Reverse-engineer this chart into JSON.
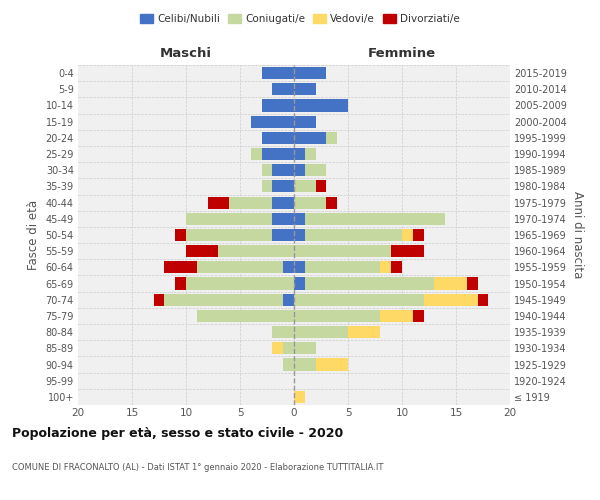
{
  "age_groups": [
    "100+",
    "95-99",
    "90-94",
    "85-89",
    "80-84",
    "75-79",
    "70-74",
    "65-69",
    "60-64",
    "55-59",
    "50-54",
    "45-49",
    "40-44",
    "35-39",
    "30-34",
    "25-29",
    "20-24",
    "15-19",
    "10-14",
    "5-9",
    "0-4"
  ],
  "birth_years": [
    "≤ 1919",
    "1920-1924",
    "1925-1929",
    "1930-1934",
    "1935-1939",
    "1940-1944",
    "1945-1949",
    "1950-1954",
    "1955-1959",
    "1960-1964",
    "1965-1969",
    "1970-1974",
    "1975-1979",
    "1980-1984",
    "1985-1989",
    "1990-1994",
    "1995-1999",
    "2000-2004",
    "2005-2009",
    "2010-2014",
    "2015-2019"
  ],
  "colors": {
    "celibi": "#4472c4",
    "coniugati": "#c5d8a0",
    "vedovi": "#ffd966",
    "divorziati": "#c00000"
  },
  "maschi": {
    "celibi": [
      0,
      0,
      0,
      0,
      0,
      0,
      1,
      0,
      1,
      0,
      2,
      2,
      2,
      2,
      2,
      3,
      3,
      4,
      3,
      2,
      3
    ],
    "coniugati": [
      0,
      0,
      1,
      1,
      2,
      9,
      11,
      10,
      8,
      7,
      8,
      8,
      4,
      1,
      1,
      1,
      0,
      0,
      0,
      0,
      0
    ],
    "vedovi": [
      0,
      0,
      0,
      1,
      0,
      0,
      0,
      0,
      0,
      0,
      0,
      0,
      0,
      0,
      0,
      0,
      0,
      0,
      0,
      0,
      0
    ],
    "divorziati": [
      0,
      0,
      0,
      0,
      0,
      0,
      1,
      1,
      3,
      3,
      1,
      0,
      2,
      0,
      0,
      0,
      0,
      0,
      0,
      0,
      0
    ]
  },
  "femmine": {
    "celibi": [
      0,
      0,
      0,
      0,
      0,
      0,
      0,
      1,
      1,
      0,
      1,
      1,
      0,
      0,
      1,
      1,
      3,
      2,
      5,
      2,
      3
    ],
    "coniugati": [
      0,
      0,
      2,
      2,
      5,
      8,
      12,
      12,
      7,
      9,
      9,
      13,
      3,
      2,
      2,
      1,
      1,
      0,
      0,
      0,
      0
    ],
    "vedovi": [
      1,
      0,
      3,
      0,
      3,
      3,
      5,
      3,
      1,
      0,
      1,
      0,
      0,
      0,
      0,
      0,
      0,
      0,
      0,
      0,
      0
    ],
    "divorziati": [
      0,
      0,
      0,
      0,
      0,
      1,
      1,
      1,
      1,
      3,
      1,
      0,
      1,
      1,
      0,
      0,
      0,
      0,
      0,
      0,
      0
    ]
  },
  "title": "Popolazione per età, sesso e stato civile - 2020",
  "subtitle": "COMUNE DI FRACONALTO (AL) - Dati ISTAT 1° gennaio 2020 - Elaborazione TUTTITALIA.IT",
  "xlabel_left": "Maschi",
  "xlabel_right": "Femmine",
  "ylabel_left": "Fasce di età",
  "ylabel_right": "Anni di nascita",
  "xlim": 20,
  "legend_labels": [
    "Celibi/Nubili",
    "Coniugati/e",
    "Vedovi/e",
    "Divorziati/e"
  ],
  "bg_color": "#f0f0f0",
  "grid_color": "#cccccc"
}
